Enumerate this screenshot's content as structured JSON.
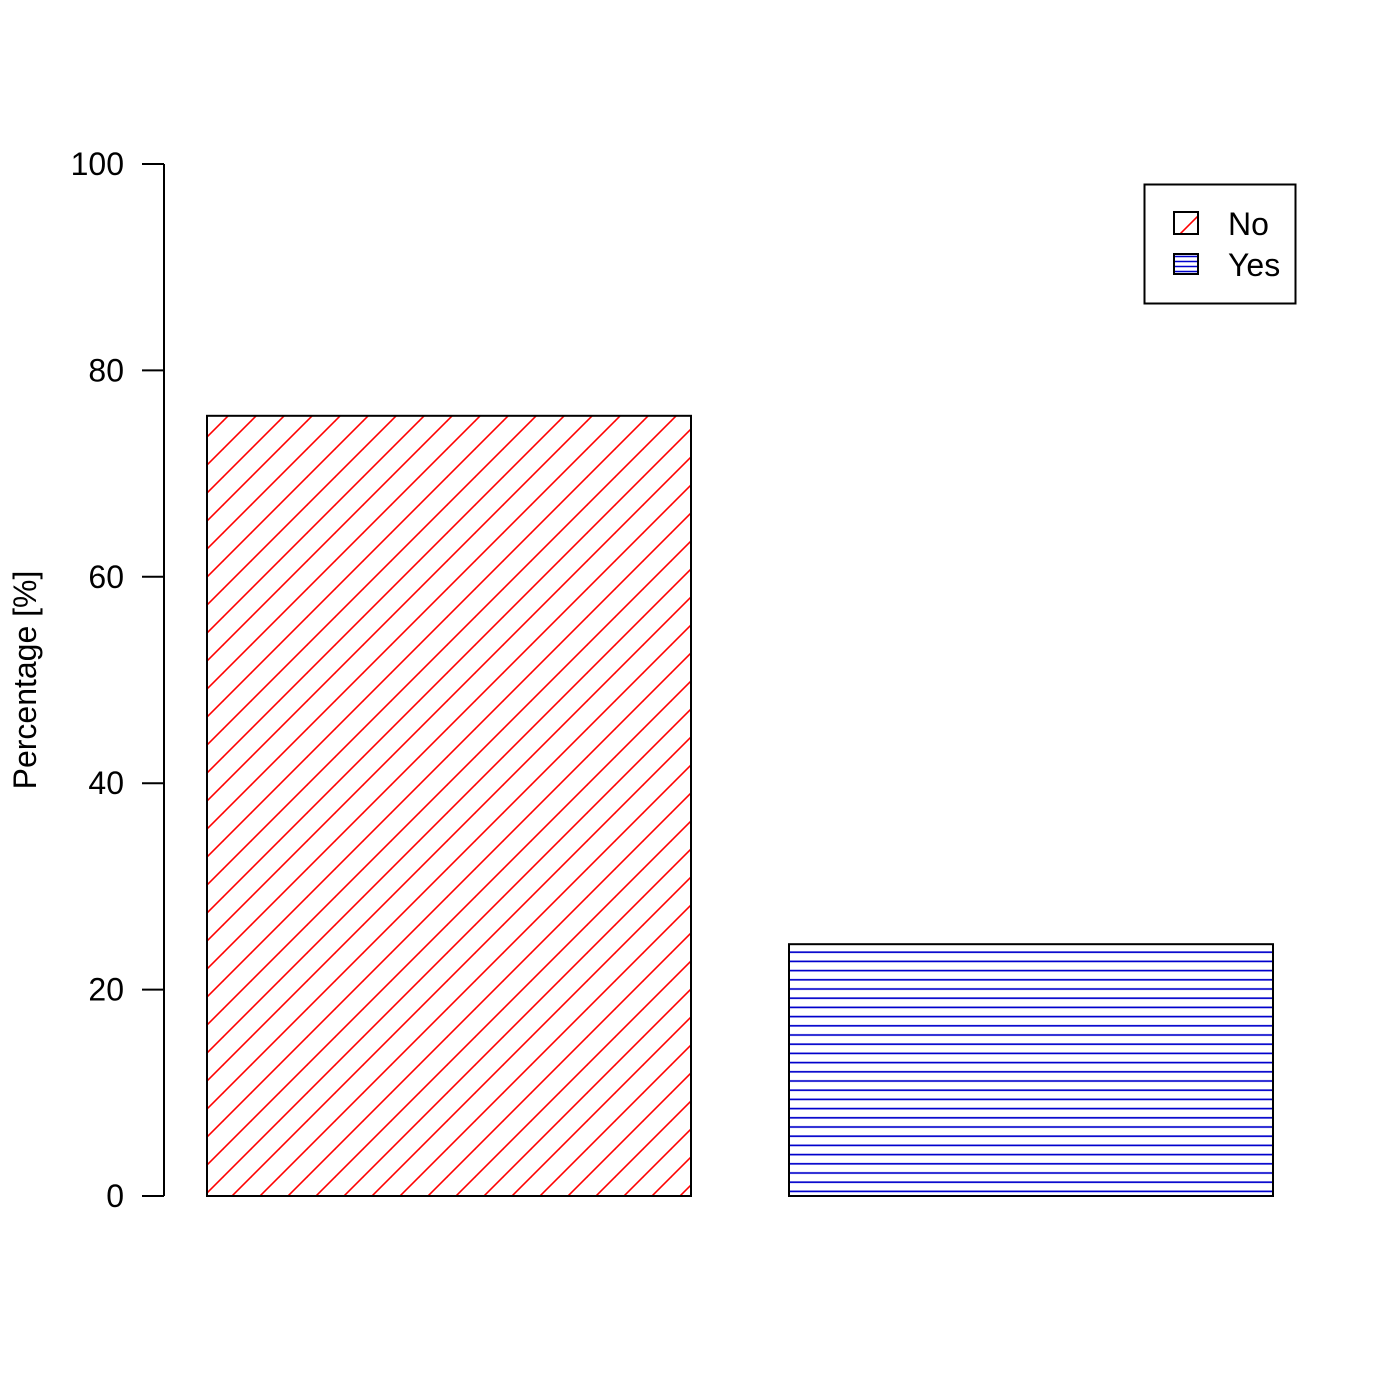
{
  "chart_data": {
    "type": "bar",
    "categories": [
      "No",
      "Yes"
    ],
    "values": [
      75.6,
      24.4
    ],
    "ylabel": "Percentage [%]",
    "ylim": [
      0,
      100
    ],
    "yticks": [
      "0",
      "20",
      "40",
      "60",
      "80",
      "100"
    ],
    "grid": false,
    "legend": {
      "placement": "top-right",
      "entries": [
        {
          "label": "No",
          "color": "#ff0000",
          "pattern": "diagonal-hatch"
        },
        {
          "label": "Yes",
          "color": "#0000cc",
          "pattern": "horizontal-hatch"
        }
      ]
    },
    "bar_colors": [
      "#ff0000",
      "#0000cc"
    ]
  }
}
